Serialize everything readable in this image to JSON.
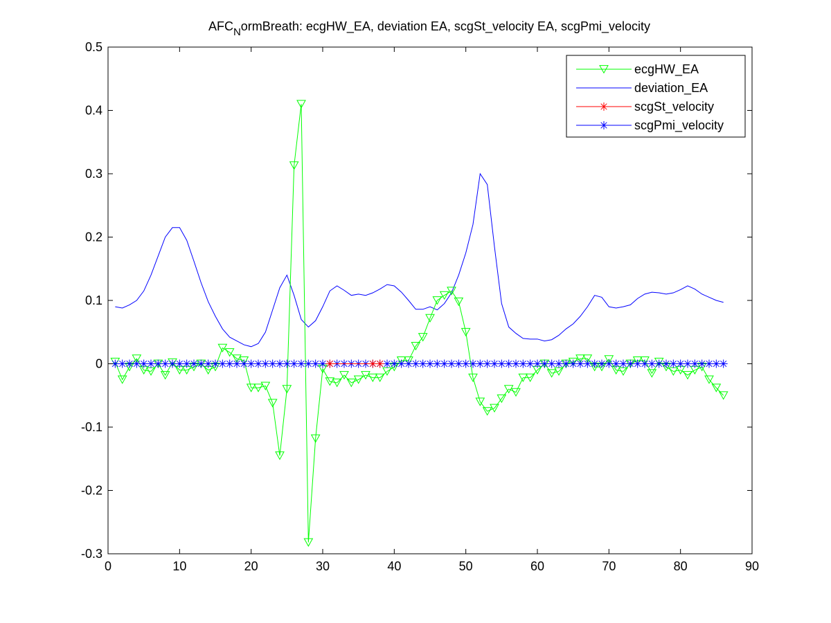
{
  "chart_data": {
    "type": "line",
    "title": "AFCNormBreath: ecgHW_EA, deviation EA, scgSt_velocity EA, scgPmi_velocity",
    "title_parts": {
      "pre": "AFC",
      "sub": "N",
      "post": "ormBreath: ecgHW_EA, deviation EA, scgSt_velocity EA, scgPmi_velocity"
    },
    "xlabel": "",
    "ylabel": "",
    "xlim": [
      0,
      90
    ],
    "ylim": [
      -0.3,
      0.5
    ],
    "xticks": [
      0,
      10,
      20,
      30,
      40,
      50,
      60,
      70,
      80,
      90
    ],
    "yticks": [
      -0.3,
      -0.2,
      -0.1,
      0,
      0.1,
      0.2,
      0.3,
      0.4,
      0.5
    ],
    "xtick_labels": [
      "0",
      "10",
      "20",
      "30",
      "40",
      "50",
      "60",
      "70",
      "80",
      "90"
    ],
    "ytick_labels": [
      "-0.3",
      "-0.2",
      "-0.1",
      "0",
      "0.1",
      "0.2",
      "0.3",
      "0.4",
      "0.5"
    ],
    "grid": false,
    "legend_position": "top-right",
    "series": [
      {
        "name": "ecgHW_EA",
        "color": "#00ff00",
        "marker": "triangle-down",
        "x": [
          1,
          2,
          3,
          4,
          5,
          6,
          7,
          8,
          9,
          10,
          11,
          12,
          13,
          14,
          15,
          16,
          17,
          18,
          19,
          20,
          21,
          22,
          23,
          24,
          25,
          26,
          27,
          28,
          29,
          30,
          31,
          32,
          33,
          34,
          35,
          36,
          37,
          38,
          39,
          40,
          41,
          42,
          43,
          44,
          45,
          46,
          47,
          48,
          49,
          50,
          51,
          52,
          53,
          54,
          55,
          56,
          57,
          58,
          59,
          60,
          61,
          62,
          63,
          64,
          65,
          66,
          67,
          68,
          69,
          70,
          71,
          72,
          73,
          74,
          75,
          76,
          77,
          78,
          79,
          80,
          81,
          82,
          83,
          84,
          85,
          86
        ],
        "y": [
          0.003,
          -0.025,
          -0.005,
          0.008,
          -0.01,
          -0.012,
          0.0,
          -0.018,
          0.002,
          -0.01,
          -0.01,
          -0.005,
          0.0,
          -0.01,
          -0.005,
          0.025,
          0.018,
          0.008,
          0.005,
          -0.038,
          -0.038,
          -0.035,
          -0.062,
          -0.145,
          -0.04,
          0.313,
          0.41,
          -0.282,
          -0.118,
          -0.008,
          -0.028,
          -0.03,
          -0.018,
          -0.03,
          -0.025,
          -0.018,
          -0.022,
          -0.022,
          -0.012,
          -0.005,
          0.005,
          0.005,
          0.028,
          0.042,
          0.072,
          0.1,
          0.108,
          0.115,
          0.098,
          0.05,
          -0.022,
          -0.06,
          -0.075,
          -0.07,
          -0.055,
          -0.04,
          -0.045,
          -0.022,
          -0.022,
          -0.01,
          0.0,
          -0.015,
          -0.012,
          0.0,
          0.003,
          0.008,
          0.008,
          -0.005,
          -0.005,
          0.007,
          -0.01,
          -0.012,
          0.0,
          0.005,
          0.005,
          -0.015,
          0.003,
          -0.005,
          -0.012,
          -0.01,
          -0.018,
          -0.01,
          -0.005,
          -0.025,
          -0.038,
          -0.05
        ]
      },
      {
        "name": "deviation_EA",
        "color": "#0000ff",
        "marker": "none",
        "x": [
          1,
          2,
          3,
          4,
          5,
          6,
          7,
          8,
          9,
          10,
          11,
          12,
          13,
          14,
          15,
          16,
          17,
          18,
          19,
          20,
          21,
          22,
          23,
          24,
          25,
          26,
          27,
          28,
          29,
          30,
          31,
          32,
          33,
          34,
          35,
          36,
          37,
          38,
          39,
          40,
          41,
          42,
          43,
          44,
          45,
          46,
          47,
          48,
          49,
          50,
          51,
          52,
          53,
          54,
          55,
          56,
          57,
          58,
          59,
          60,
          61,
          62,
          63,
          64,
          65,
          66,
          67,
          68,
          69,
          70,
          71,
          72,
          73,
          74,
          75,
          76,
          77,
          78,
          79,
          80,
          81,
          82,
          83,
          84,
          85,
          86
        ],
        "y": [
          0.09,
          0.088,
          0.093,
          0.1,
          0.115,
          0.14,
          0.17,
          0.2,
          0.215,
          0.215,
          0.195,
          0.162,
          0.128,
          0.098,
          0.075,
          0.055,
          0.042,
          0.036,
          0.03,
          0.027,
          0.032,
          0.05,
          0.085,
          0.12,
          0.14,
          0.108,
          0.07,
          0.058,
          0.068,
          0.09,
          0.115,
          0.123,
          0.116,
          0.108,
          0.11,
          0.108,
          0.112,
          0.118,
          0.125,
          0.123,
          0.113,
          0.1,
          0.086,
          0.086,
          0.09,
          0.085,
          0.095,
          0.112,
          0.14,
          0.175,
          0.22,
          0.3,
          0.283,
          0.185,
          0.095,
          0.058,
          0.048,
          0.04,
          0.039,
          0.039,
          0.036,
          0.038,
          0.045,
          0.055,
          0.063,
          0.075,
          0.09,
          0.108,
          0.105,
          0.09,
          0.088,
          0.09,
          0.093,
          0.103,
          0.11,
          0.113,
          0.112,
          0.11,
          0.112,
          0.117,
          0.123,
          0.118,
          0.11,
          0.105,
          0.1,
          0.097
        ]
      },
      {
        "name": "scgSt_velocity",
        "color": "#ff0000",
        "marker": "star",
        "x": [
          31,
          37,
          38
        ],
        "y": [
          0,
          0,
          0
        ]
      },
      {
        "name": "scgPmi_velocity",
        "color": "#0000ff",
        "marker": "star",
        "x": [
          1,
          2,
          3,
          4,
          5,
          6,
          7,
          8,
          9,
          10,
          11,
          12,
          13,
          14,
          15,
          16,
          17,
          18,
          19,
          20,
          21,
          22,
          23,
          24,
          25,
          26,
          27,
          28,
          29,
          30,
          31,
          32,
          33,
          34,
          35,
          36,
          37,
          38,
          39,
          40,
          41,
          42,
          43,
          44,
          45,
          46,
          47,
          48,
          49,
          50,
          51,
          52,
          53,
          54,
          55,
          56,
          57,
          58,
          59,
          60,
          61,
          62,
          63,
          64,
          65,
          66,
          67,
          68,
          69,
          70,
          71,
          72,
          73,
          74,
          75,
          76,
          77,
          78,
          79,
          80,
          81,
          82,
          83,
          84,
          85,
          86
        ],
        "y": [
          0,
          0,
          0,
          0,
          0,
          0,
          0,
          0,
          0,
          0,
          0,
          0,
          0,
          0,
          0,
          0,
          0,
          0,
          0,
          0,
          0,
          0,
          0,
          0,
          0,
          0,
          0,
          0,
          0,
          0,
          0,
          0,
          0,
          0,
          0,
          0,
          0,
          0,
          0,
          0,
          0,
          0,
          0,
          0,
          0,
          0,
          0,
          0,
          0,
          0,
          0,
          0,
          0,
          0,
          0,
          0,
          0,
          0,
          0,
          0,
          0,
          0,
          0,
          0,
          0,
          0,
          0,
          0,
          0,
          0,
          0,
          0,
          0,
          0,
          0,
          0,
          0,
          0,
          0,
          0,
          0,
          0,
          0,
          0,
          0,
          0
        ]
      }
    ]
  }
}
